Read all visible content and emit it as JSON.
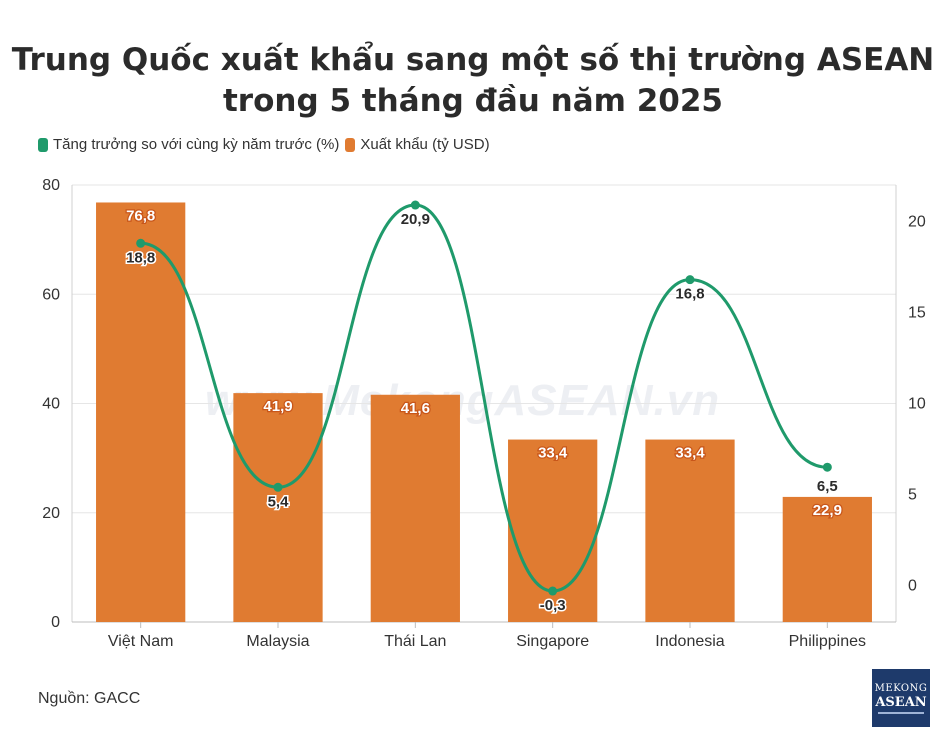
{
  "title_line1": "Trung Quốc xuất khẩu sang một số thị trường ASEAN",
  "title_line2": "trong 5 tháng đầu năm 2025",
  "legend": [
    {
      "label": "Tăng trưởng so với cùng kỳ năm trước (%)",
      "color": "#1f9a6b"
    },
    {
      "label": "Xuất khẩu (tỷ USD)",
      "color": "#e07b31"
    }
  ],
  "source": "Nguồn: GACC",
  "watermark": "www.MekongASEAN.vn",
  "logo": {
    "line1": "MEKONG",
    "line2": "ASEAN"
  },
  "colors": {
    "bar": "#e07b31",
    "line": "#1f9a6b",
    "grid": "#e6e6e6"
  },
  "chart_data": {
    "type": "bar",
    "categories": [
      "Việt Nam",
      "Malaysia",
      "Thái Lan",
      "Singapore",
      "Indonesia",
      "Philippines"
    ],
    "series": [
      {
        "name": "Xuất khẩu (tỷ USD)",
        "type": "bar",
        "axis": "left",
        "values": [
          76.8,
          41.9,
          41.6,
          33.4,
          33.4,
          22.9
        ],
        "labels": [
          "76,8",
          "41,9",
          "41,6",
          "33,4",
          "33,4",
          "22,9"
        ]
      },
      {
        "name": "Tăng trưởng so với cùng kỳ năm trước (%)",
        "type": "line",
        "axis": "right",
        "values": [
          18.8,
          5.4,
          20.9,
          -0.3,
          16.8,
          6.5
        ],
        "labels": [
          "18,8",
          "5,4",
          "20,9",
          "-0,3",
          "16,8",
          "6,5"
        ]
      }
    ],
    "y_left": {
      "range": [
        0,
        80
      ],
      "ticks": [
        "0",
        "20",
        "40",
        "60",
        "80"
      ]
    },
    "y_right": {
      "range": [
        -2,
        22
      ],
      "ticks": [
        "0",
        "5",
        "10",
        "15",
        "20"
      ]
    },
    "grid": true,
    "legend_position": "top-left"
  }
}
